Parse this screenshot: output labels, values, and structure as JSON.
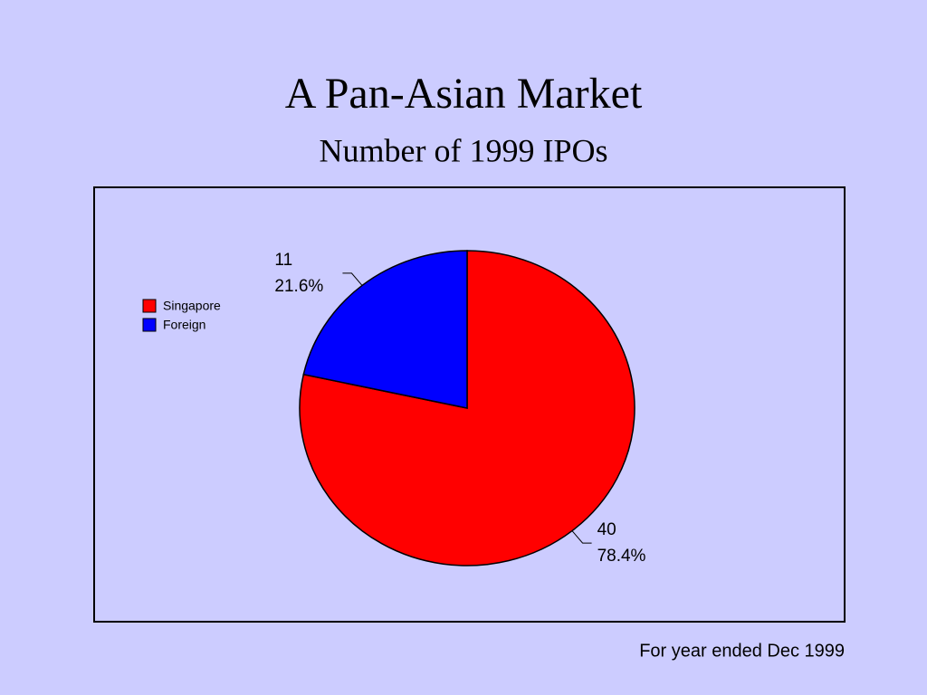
{
  "chart_data": {
    "type": "pie",
    "title": "A Pan-Asian Market",
    "subtitle": "Number of 1999 IPOs",
    "categories": [
      "Singapore",
      "Foreign"
    ],
    "values": [
      40,
      11
    ],
    "percentages": [
      {
        "value": 78.4,
        "label": "78.4%"
      },
      {
        "value": 21.6,
        "label": "21.6%"
      }
    ],
    "colors": [
      "#ff0000",
      "#0000ff"
    ],
    "legend": "left",
    "note": "For year ended Dec 1999"
  }
}
